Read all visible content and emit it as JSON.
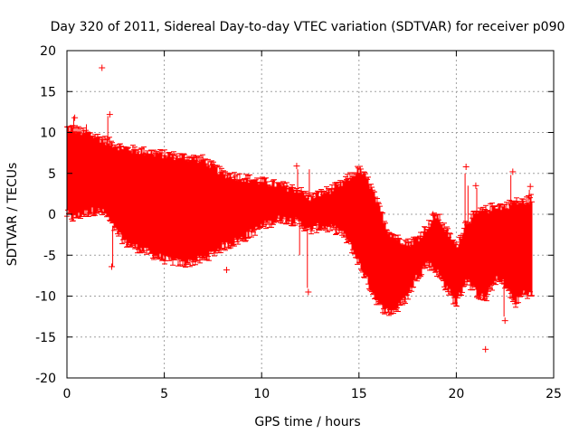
{
  "chart_data": {
    "type": "scatter",
    "title": "Day 320 of 2011, Sidereal Day-to-day VTEC variation (SDTVAR) for receiver p090",
    "xlabel": "GPS time / hours",
    "ylabel": "SDTVAR / TECUs",
    "xlim": [
      0,
      25
    ],
    "ylim": [
      -20,
      20
    ],
    "xticks": [
      0,
      5,
      10,
      15,
      20,
      25
    ],
    "xtick_labels": [
      "0",
      "5",
      "10",
      "15",
      "20",
      "25"
    ],
    "yticks": [
      -20,
      -15,
      -10,
      -5,
      0,
      5,
      10,
      15,
      20
    ],
    "ytick_labels": [
      "-20",
      "-15",
      "-10",
      "-5",
      "0",
      "5",
      "10",
      "15",
      "20"
    ],
    "grid": true,
    "marker": "+",
    "color": "#ff0000",
    "series": [
      {
        "name": "SDTVAR",
        "envelope": {
          "x": [
            0.0,
            0.3,
            0.8,
            1.5,
            2.0,
            2.5,
            3.0,
            4.0,
            5.0,
            6.0,
            7.0,
            8.0,
            9.0,
            10.0,
            11.0,
            11.9,
            12.5,
            13.0,
            14.0,
            14.5,
            15.0,
            15.5,
            16.0,
            16.5,
            17.0,
            17.5,
            18.0,
            18.5,
            19.0,
            19.5,
            20.0,
            20.5,
            21.0,
            21.5,
            22.0,
            22.5,
            23.0,
            23.5,
            23.9
          ],
          "upper": [
            10.5,
            10.5,
            10.0,
            9.5,
            9.0,
            8.5,
            8.0,
            7.7,
            7.3,
            7.0,
            6.7,
            5.0,
            4.5,
            4.0,
            3.5,
            3.0,
            2.0,
            2.5,
            3.5,
            4.5,
            5.5,
            4.0,
            1.0,
            -2.0,
            -3.0,
            -3.5,
            -3.0,
            -1.5,
            0.0,
            -2.0,
            -4.0,
            -1.0,
            0.0,
            0.5,
            1.0,
            1.0,
            1.5,
            1.5,
            2.0
          ],
          "lower": [
            0.0,
            -0.5,
            0.0,
            0.5,
            0.0,
            -2.0,
            -3.5,
            -4.5,
            -5.5,
            -6.0,
            -5.5,
            -4.0,
            -3.0,
            -1.5,
            -0.5,
            -1.0,
            -2.0,
            -1.5,
            -2.0,
            -3.5,
            -6.0,
            -8.5,
            -11.0,
            -12.0,
            -11.5,
            -10.0,
            -7.5,
            -6.0,
            -7.0,
            -9.0,
            -11.0,
            -8.0,
            -9.5,
            -10.5,
            -8.0,
            -8.5,
            -11.0,
            -9.5,
            -10.0
          ]
        },
        "outliers": [
          {
            "x": 1.8,
            "y": 17.9
          },
          {
            "x": 2.2,
            "y": 12.2
          },
          {
            "x": 0.4,
            "y": 11.8
          },
          {
            "x": 2.3,
            "y": -6.4
          },
          {
            "x": 8.2,
            "y": -6.8
          },
          {
            "x": 11.8,
            "y": 5.9
          },
          {
            "x": 12.4,
            "y": -9.5
          },
          {
            "x": 18.8,
            "y": 0.0
          },
          {
            "x": 20.5,
            "y": 5.8
          },
          {
            "x": 21.0,
            "y": 3.5
          },
          {
            "x": 21.5,
            "y": -16.5
          },
          {
            "x": 22.5,
            "y": -13.0
          },
          {
            "x": 22.9,
            "y": 5.2
          },
          {
            "x": 23.8,
            "y": 3.4
          }
        ]
      }
    ]
  }
}
